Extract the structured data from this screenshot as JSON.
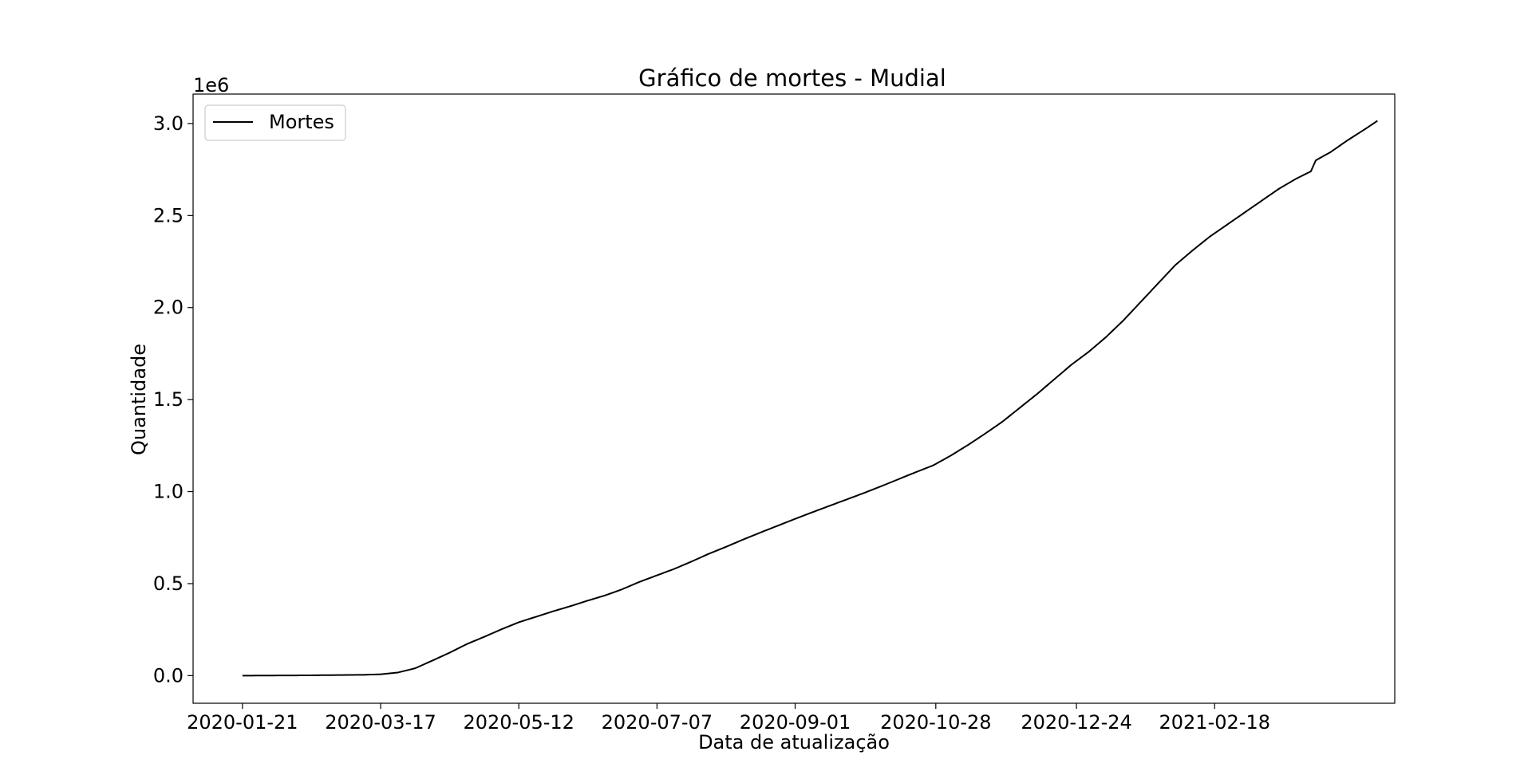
{
  "chart_data": {
    "type": "line",
    "title": "Gráfico de mortes - Mudial",
    "xlabel": "Data de atualização",
    "ylabel": "Quantidade",
    "y_offset_text": "1e6",
    "x_tick_labels": [
      "2020-01-21",
      "2020-03-17",
      "2020-05-12",
      "2020-07-07",
      "2020-09-01",
      "2020-10-28",
      "2020-12-24",
      "2021-02-18"
    ],
    "y_tick_labels": [
      "0.0",
      "0.5",
      "1.0",
      "1.5",
      "2.0",
      "2.5",
      "3.0"
    ],
    "y_ticks": [
      0,
      500000,
      1000000,
      1500000,
      2000000,
      2500000,
      3000000
    ],
    "xlim": [
      "2020-01-01",
      "2021-05-02"
    ],
    "ylim": [
      -150000,
      3160000
    ],
    "grid": false,
    "legend_position": "top-left",
    "line_color": "#000000",
    "series": [
      {
        "name": "Mortes",
        "points": [
          [
            "2020-01-21",
            0
          ],
          [
            "2020-02-15",
            1500
          ],
          [
            "2020-03-10",
            4500
          ],
          [
            "2020-03-17",
            7500
          ],
          [
            "2020-03-24",
            17000
          ],
          [
            "2020-03-31",
            40000
          ],
          [
            "2020-04-07",
            82000
          ],
          [
            "2020-04-14",
            125000
          ],
          [
            "2020-04-21",
            172000
          ],
          [
            "2020-04-28",
            211000
          ],
          [
            "2020-05-05",
            252000
          ],
          [
            "2020-05-12",
            290000
          ],
          [
            "2020-05-19",
            320000
          ],
          [
            "2020-05-26",
            350000
          ],
          [
            "2020-06-02",
            378000
          ],
          [
            "2020-06-09",
            408000
          ],
          [
            "2020-06-16",
            436000
          ],
          [
            "2020-06-23",
            470000
          ],
          [
            "2020-06-30",
            510000
          ],
          [
            "2020-07-07",
            545000
          ],
          [
            "2020-07-14",
            580000
          ],
          [
            "2020-07-21",
            620000
          ],
          [
            "2020-07-28",
            662000
          ],
          [
            "2020-08-04",
            700000
          ],
          [
            "2020-08-11",
            740000
          ],
          [
            "2020-08-18",
            778000
          ],
          [
            "2020-08-25",
            815000
          ],
          [
            "2020-09-01",
            852000
          ],
          [
            "2020-09-08",
            888000
          ],
          [
            "2020-09-15",
            923000
          ],
          [
            "2020-09-22",
            958000
          ],
          [
            "2020-09-29",
            993000
          ],
          [
            "2020-10-06",
            1030000
          ],
          [
            "2020-10-13",
            1068000
          ],
          [
            "2020-10-20",
            1106000
          ],
          [
            "2020-10-27",
            1143000
          ],
          [
            "2020-11-03",
            1195000
          ],
          [
            "2020-11-10",
            1253000
          ],
          [
            "2020-11-17",
            1315000
          ],
          [
            "2020-11-24",
            1380000
          ],
          [
            "2020-12-01",
            1455000
          ],
          [
            "2020-12-08",
            1530000
          ],
          [
            "2020-12-15",
            1610000
          ],
          [
            "2020-12-22",
            1690000
          ],
          [
            "2020-12-29",
            1760000
          ],
          [
            "2021-01-05",
            1840000
          ],
          [
            "2021-01-12",
            1930000
          ],
          [
            "2021-01-19",
            2030000
          ],
          [
            "2021-01-26",
            2130000
          ],
          [
            "2021-02-02",
            2230000
          ],
          [
            "2021-02-09",
            2310000
          ],
          [
            "2021-02-16",
            2385000
          ],
          [
            "2021-02-23",
            2450000
          ],
          [
            "2021-03-02",
            2515000
          ],
          [
            "2021-03-09",
            2580000
          ],
          [
            "2021-03-16",
            2645000
          ],
          [
            "2021-03-23",
            2700000
          ],
          [
            "2021-03-29",
            2740000
          ],
          [
            "2021-03-31",
            2800000
          ],
          [
            "2021-04-06",
            2845000
          ],
          [
            "2021-04-13",
            2910000
          ],
          [
            "2021-04-20",
            2970000
          ],
          [
            "2021-04-25",
            3015000
          ]
        ]
      }
    ]
  }
}
